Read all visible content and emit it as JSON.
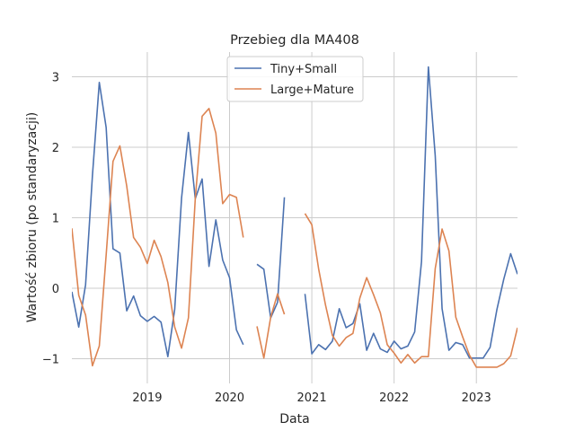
{
  "chart_data": {
    "type": "line",
    "title": "Przebieg dla MA408",
    "xlabel": "Data",
    "ylabel": "Wartość zbioru (po standaryzacji)",
    "x_ticks": [
      "2019",
      "2020",
      "2021",
      "2022",
      "2023"
    ],
    "y_ticks": [
      "−1",
      "0",
      "1",
      "2",
      "3"
    ],
    "xlim": [
      "2018-02",
      "2023-07"
    ],
    "ylim": [
      -1.35,
      3.35
    ],
    "grid": true,
    "legend_position": "top-center",
    "colors": {
      "Tiny+Small": "#4c72b0",
      "Large+Mature": "#dd8452"
    },
    "x": [
      "2018-02",
      "2018-03",
      "2018-04",
      "2018-05",
      "2018-06",
      "2018-07",
      "2018-08",
      "2018-09",
      "2018-10",
      "2018-11",
      "2018-12",
      "2019-01",
      "2019-02",
      "2019-03",
      "2019-04",
      "2019-05",
      "2019-06",
      "2019-07",
      "2019-08",
      "2019-09",
      "2019-10",
      "2019-11",
      "2019-12",
      "2020-01",
      "2020-02",
      "2020-03",
      "2020-04",
      "2020-05",
      "2020-06",
      "2020-07",
      "2020-08",
      "2020-09",
      "2020-10",
      "2020-11",
      "2020-12",
      "2021-01",
      "2021-02",
      "2021-03",
      "2021-04",
      "2021-05",
      "2021-06",
      "2021-07",
      "2021-08",
      "2021-09",
      "2021-10",
      "2021-11",
      "2021-12",
      "2022-01",
      "2022-02",
      "2022-03",
      "2022-04",
      "2022-05",
      "2022-06",
      "2022-07",
      "2022-08",
      "2022-09",
      "2022-10",
      "2022-11",
      "2022-12",
      "2023-01",
      "2023-02",
      "2023-03",
      "2023-04",
      "2023-05",
      "2023-06",
      "2023-07"
    ],
    "series": [
      {
        "name": "Tiny+Small",
        "values": [
          -0.05,
          -0.55,
          0.05,
          1.6,
          2.92,
          2.28,
          0.56,
          0.5,
          -0.32,
          -0.11,
          -0.39,
          -0.47,
          -0.4,
          -0.48,
          -0.97,
          -0.3,
          1.28,
          2.21,
          1.27,
          1.55,
          0.31,
          0.97,
          0.4,
          0.15,
          -0.59,
          -0.8,
          null,
          0.34,
          0.27,
          -0.42,
          -0.2,
          1.29,
          null,
          null,
          -0.08,
          -0.93,
          -0.8,
          -0.87,
          -0.75,
          -0.29,
          -0.56,
          -0.5,
          -0.22,
          -0.88,
          -0.64,
          -0.86,
          -0.91,
          -0.75,
          -0.86,
          -0.82,
          -0.62,
          0.38,
          3.14,
          1.88,
          -0.29,
          -0.88,
          -0.77,
          -0.8,
          -0.99,
          -0.99,
          -0.99,
          -0.84,
          -0.3,
          0.13,
          0.49,
          0.2
        ]
      },
      {
        "name": "Large+Mature",
        "values": [
          0.85,
          -0.1,
          -0.38,
          -1.1,
          -0.82,
          0.47,
          1.8,
          2.02,
          1.45,
          0.72,
          0.58,
          0.35,
          0.68,
          0.45,
          0.08,
          -0.55,
          -0.85,
          -0.42,
          1.27,
          2.44,
          2.55,
          2.2,
          1.2,
          1.33,
          1.29,
          0.72,
          null,
          -0.54,
          -0.99,
          -0.41,
          -0.08,
          -0.37,
          null,
          null,
          1.06,
          0.9,
          0.27,
          -0.24,
          -0.67,
          -0.82,
          -0.7,
          -0.64,
          -0.14,
          0.15,
          -0.09,
          -0.35,
          -0.8,
          -0.92,
          -1.06,
          -0.94,
          -1.06,
          -0.97,
          -0.97,
          0.28,
          0.84,
          0.53,
          -0.41,
          -0.69,
          -0.95,
          -1.12,
          -1.12,
          -1.12,
          -1.12,
          -1.07,
          -0.96,
          -0.56
        ]
      }
    ]
  }
}
